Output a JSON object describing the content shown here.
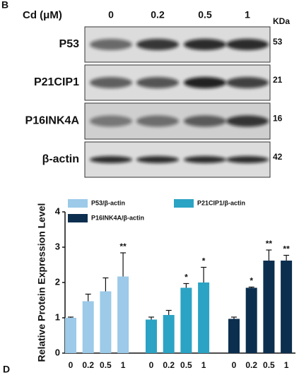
{
  "panel_labels": [
    "B",
    "D"
  ],
  "blot": {
    "dose_label": "Cd (μM)",
    "doses": [
      "0",
      "0.2",
      "0.5",
      "1"
    ],
    "mw_unit": "KDa",
    "rows": [
      {
        "label": "P53",
        "mw": 53
      },
      {
        "label": "P21CIP1",
        "mw": 21
      },
      {
        "label": "P16INK4A",
        "mw": 16
      },
      {
        "label": "β-actin",
        "mw": 42
      }
    ]
  },
  "chart_data": {
    "type": "bar",
    "y_label": "Relative Protein Expression Level",
    "categories": [
      "0",
      "0.2",
      "0.5",
      "1"
    ],
    "ylim": [
      0,
      4
    ],
    "yticks": [
      0,
      1,
      2,
      3,
      4
    ],
    "series": [
      {
        "name": "P53/β-actin",
        "color": "#9ccae8",
        "values": [
          1.0,
          1.47,
          1.75,
          2.17
        ],
        "errors": [
          0.02,
          0.2,
          0.38,
          0.67
        ],
        "significance": [
          null,
          null,
          null,
          "**"
        ]
      },
      {
        "name": "P21CIP1/β-actin",
        "color": "#2ba3c4",
        "values": [
          0.95,
          1.08,
          1.85,
          2.0
        ],
        "errors": [
          0.07,
          0.13,
          0.12,
          0.43
        ],
        "significance": [
          null,
          null,
          "*",
          "*"
        ]
      },
      {
        "name": "P16INK4A/β-actin",
        "color": "#0c2f4f",
        "values": [
          0.97,
          1.85,
          2.62,
          2.62
        ],
        "errors": [
          0.05,
          0.02,
          0.3,
          0.15
        ],
        "significance": [
          null,
          "*",
          "**",
          "**"
        ]
      }
    ]
  }
}
